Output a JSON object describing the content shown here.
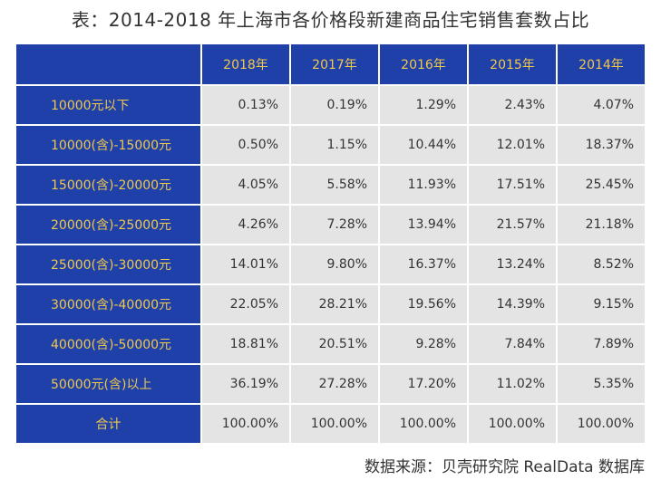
{
  "title": "表：2014-2018 年上海市各价格段新建商品住宅销售套数占比",
  "source": "数据来源：贝壳研究院 RealData 数据库",
  "colors": {
    "header_bg": "#1f40a8",
    "header_text": "#f0c84a",
    "cell_bg": "#e4e4e4",
    "cell_text": "#333333"
  },
  "chart_data": {
    "type": "table",
    "title": "表：2014-2018 年上海市各价格段新建商品住宅销售套数占比",
    "columns": [
      "2018年",
      "2017年",
      "2016年",
      "2015年",
      "2014年"
    ],
    "rows": [
      {
        "label": "10000元以下",
        "values": [
          "0.13%",
          "0.19%",
          "1.29%",
          "2.43%",
          "4.07%"
        ]
      },
      {
        "label": "10000(含)-15000元",
        "values": [
          "0.50%",
          "1.15%",
          "10.44%",
          "12.01%",
          "18.37%"
        ]
      },
      {
        "label": "15000(含)-20000元",
        "values": [
          "4.05%",
          "5.58%",
          "11.93%",
          "17.51%",
          "25.45%"
        ]
      },
      {
        "label": "20000(含)-25000元",
        "values": [
          "4.26%",
          "7.28%",
          "13.94%",
          "21.57%",
          "21.18%"
        ]
      },
      {
        "label": "25000(含)-30000元",
        "values": [
          "14.01%",
          "9.80%",
          "16.37%",
          "13.24%",
          "8.52%"
        ]
      },
      {
        "label": "30000(含)-40000元",
        "values": [
          "22.05%",
          "28.21%",
          "19.56%",
          "14.39%",
          "9.15%"
        ]
      },
      {
        "label": "40000(含)-50000元",
        "values": [
          "18.81%",
          "20.51%",
          "9.28%",
          "7.84%",
          "7.89%"
        ]
      },
      {
        "label": "50000元(含)以上",
        "values": [
          "36.19%",
          "27.28%",
          "17.20%",
          "11.02%",
          "5.35%"
        ]
      },
      {
        "label": "合计",
        "values": [
          "100.00%",
          "100.00%",
          "100.00%",
          "100.00%",
          "100.00%"
        ]
      }
    ]
  }
}
